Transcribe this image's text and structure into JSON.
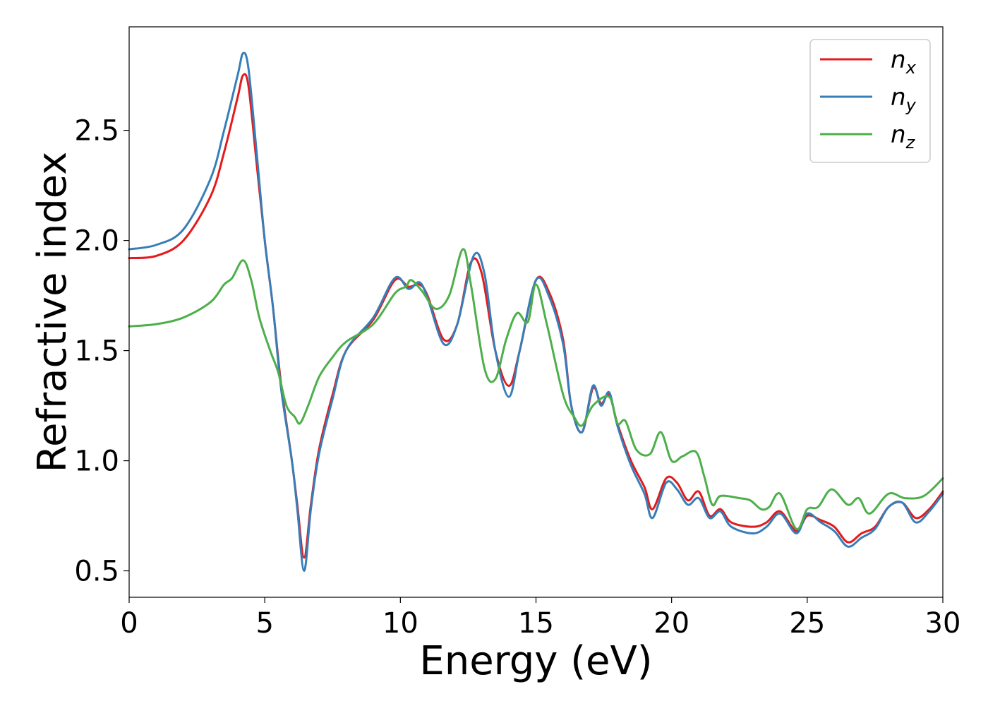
{
  "chart_data": {
    "type": "line",
    "xlabel": "Energy (eV)",
    "ylabel": "Refractive index",
    "xlim": [
      0,
      30
    ],
    "ylim": [
      0.38,
      2.97
    ],
    "xticks": [
      0,
      5,
      10,
      15,
      20,
      25,
      30
    ],
    "xtick_labels": [
      "0",
      "5",
      "10",
      "15",
      "20",
      "25",
      "30"
    ],
    "yticks": [
      0.5,
      1.0,
      1.5,
      2.0,
      2.5
    ],
    "ytick_labels": [
      "0.5",
      "1.0",
      "1.5",
      "2.0",
      "2.5"
    ],
    "grid": false,
    "legend_position": "top-right",
    "series": [
      {
        "name": "n",
        "subscript": "x",
        "color": "#e41a1c",
        "points": [
          [
            0,
            1.92
          ],
          [
            1,
            1.93
          ],
          [
            2,
            2.0
          ],
          [
            3,
            2.2
          ],
          [
            3.5,
            2.4
          ],
          [
            4,
            2.65
          ],
          [
            4.2,
            2.75
          ],
          [
            4.4,
            2.7
          ],
          [
            4.7,
            2.35
          ],
          [
            5,
            2.0
          ],
          [
            5.3,
            1.7
          ],
          [
            5.6,
            1.35
          ],
          [
            6,
            1.0
          ],
          [
            6.2,
            0.8
          ],
          [
            6.45,
            0.56
          ],
          [
            6.7,
            0.8
          ],
          [
            7,
            1.05
          ],
          [
            7.5,
            1.3
          ],
          [
            8,
            1.5
          ],
          [
            9,
            1.64
          ],
          [
            9.8,
            1.82
          ],
          [
            10.3,
            1.79
          ],
          [
            10.7,
            1.8
          ],
          [
            11,
            1.75
          ],
          [
            11.6,
            1.55
          ],
          [
            12.1,
            1.62
          ],
          [
            12.6,
            1.9
          ],
          [
            13,
            1.85
          ],
          [
            13.5,
            1.5
          ],
          [
            14,
            1.34
          ],
          [
            14.4,
            1.5
          ],
          [
            15,
            1.82
          ],
          [
            15.5,
            1.76
          ],
          [
            16,
            1.55
          ],
          [
            16.3,
            1.25
          ],
          [
            16.7,
            1.13
          ],
          [
            17.1,
            1.33
          ],
          [
            17.4,
            1.26
          ],
          [
            17.7,
            1.3
          ],
          [
            18,
            1.17
          ],
          [
            18.5,
            1.0
          ],
          [
            19,
            0.88
          ],
          [
            19.3,
            0.78
          ],
          [
            19.8,
            0.92
          ],
          [
            20.2,
            0.9
          ],
          [
            20.6,
            0.82
          ],
          [
            21,
            0.86
          ],
          [
            21.4,
            0.75
          ],
          [
            21.8,
            0.78
          ],
          [
            22.2,
            0.72
          ],
          [
            23,
            0.7
          ],
          [
            23.5,
            0.72
          ],
          [
            24,
            0.77
          ],
          [
            24.6,
            0.68
          ],
          [
            25,
            0.75
          ],
          [
            25.5,
            0.73
          ],
          [
            26,
            0.7
          ],
          [
            26.5,
            0.63
          ],
          [
            27,
            0.67
          ],
          [
            27.5,
            0.7
          ],
          [
            28,
            0.79
          ],
          [
            28.5,
            0.81
          ],
          [
            29,
            0.74
          ],
          [
            29.5,
            0.78
          ],
          [
            30,
            0.86
          ]
        ]
      },
      {
        "name": "n",
        "subscript": "y",
        "color": "#377eb8",
        "points": [
          [
            0,
            1.96
          ],
          [
            1,
            1.98
          ],
          [
            2,
            2.05
          ],
          [
            3,
            2.28
          ],
          [
            3.5,
            2.5
          ],
          [
            4,
            2.75
          ],
          [
            4.2,
            2.85
          ],
          [
            4.4,
            2.78
          ],
          [
            4.7,
            2.4
          ],
          [
            5,
            2.0
          ],
          [
            5.3,
            1.7
          ],
          [
            5.6,
            1.33
          ],
          [
            6,
            1.0
          ],
          [
            6.2,
            0.78
          ],
          [
            6.45,
            0.5
          ],
          [
            6.7,
            0.78
          ],
          [
            7,
            1.03
          ],
          [
            7.5,
            1.28
          ],
          [
            8,
            1.5
          ],
          [
            9,
            1.65
          ],
          [
            9.8,
            1.83
          ],
          [
            10.3,
            1.78
          ],
          [
            10.7,
            1.81
          ],
          [
            11,
            1.74
          ],
          [
            11.6,
            1.53
          ],
          [
            12.1,
            1.62
          ],
          [
            12.7,
            1.93
          ],
          [
            13.1,
            1.85
          ],
          [
            13.5,
            1.5
          ],
          [
            14,
            1.29
          ],
          [
            14.4,
            1.5
          ],
          [
            15,
            1.82
          ],
          [
            15.5,
            1.74
          ],
          [
            16,
            1.53
          ],
          [
            16.3,
            1.25
          ],
          [
            16.7,
            1.13
          ],
          [
            17.1,
            1.34
          ],
          [
            17.4,
            1.25
          ],
          [
            17.7,
            1.31
          ],
          [
            18,
            1.16
          ],
          [
            18.5,
            0.98
          ],
          [
            19,
            0.85
          ],
          [
            19.3,
            0.74
          ],
          [
            19.8,
            0.9
          ],
          [
            20.2,
            0.87
          ],
          [
            20.6,
            0.8
          ],
          [
            21,
            0.83
          ],
          [
            21.4,
            0.74
          ],
          [
            21.8,
            0.77
          ],
          [
            22.2,
            0.7
          ],
          [
            23,
            0.67
          ],
          [
            23.5,
            0.7
          ],
          [
            24,
            0.76
          ],
          [
            24.6,
            0.67
          ],
          [
            25,
            0.76
          ],
          [
            25.5,
            0.72
          ],
          [
            26,
            0.68
          ],
          [
            26.5,
            0.61
          ],
          [
            27,
            0.65
          ],
          [
            27.5,
            0.69
          ],
          [
            28,
            0.79
          ],
          [
            28.5,
            0.81
          ],
          [
            29,
            0.72
          ],
          [
            29.5,
            0.77
          ],
          [
            30,
            0.85
          ]
        ]
      },
      {
        "name": "n",
        "subscript": "z",
        "color": "#4daf4a",
        "points": [
          [
            0,
            1.61
          ],
          [
            1,
            1.62
          ],
          [
            2,
            1.65
          ],
          [
            3,
            1.72
          ],
          [
            3.5,
            1.8
          ],
          [
            3.8,
            1.83
          ],
          [
            4.2,
            1.91
          ],
          [
            4.5,
            1.82
          ],
          [
            4.8,
            1.65
          ],
          [
            5.2,
            1.5
          ],
          [
            5.5,
            1.4
          ],
          [
            5.8,
            1.25
          ],
          [
            6.1,
            1.2
          ],
          [
            6.3,
            1.17
          ],
          [
            6.6,
            1.25
          ],
          [
            7,
            1.38
          ],
          [
            7.5,
            1.47
          ],
          [
            8,
            1.54
          ],
          [
            9,
            1.62
          ],
          [
            9.8,
            1.76
          ],
          [
            10.2,
            1.79
          ],
          [
            10.4,
            1.82
          ],
          [
            10.8,
            1.77
          ],
          [
            11.3,
            1.69
          ],
          [
            11.8,
            1.75
          ],
          [
            12.3,
            1.96
          ],
          [
            12.6,
            1.8
          ],
          [
            13.1,
            1.42
          ],
          [
            13.5,
            1.37
          ],
          [
            13.9,
            1.55
          ],
          [
            14.3,
            1.67
          ],
          [
            14.7,
            1.63
          ],
          [
            15,
            1.8
          ],
          [
            15.4,
            1.62
          ],
          [
            16,
            1.3
          ],
          [
            16.4,
            1.2
          ],
          [
            16.7,
            1.16
          ],
          [
            17.1,
            1.25
          ],
          [
            17.7,
            1.29
          ],
          [
            18,
            1.17
          ],
          [
            18.3,
            1.18
          ],
          [
            18.7,
            1.05
          ],
          [
            19.2,
            1.03
          ],
          [
            19.6,
            1.13
          ],
          [
            20,
            1.0
          ],
          [
            20.4,
            1.02
          ],
          [
            20.9,
            1.04
          ],
          [
            21.2,
            0.93
          ],
          [
            21.5,
            0.8
          ],
          [
            21.8,
            0.84
          ],
          [
            22.5,
            0.83
          ],
          [
            22.9,
            0.82
          ],
          [
            23.3,
            0.78
          ],
          [
            23.6,
            0.79
          ],
          [
            24,
            0.85
          ],
          [
            24.6,
            0.69
          ],
          [
            25,
            0.78
          ],
          [
            25.4,
            0.79
          ],
          [
            25.9,
            0.87
          ],
          [
            26.5,
            0.8
          ],
          [
            26.9,
            0.83
          ],
          [
            27.3,
            0.76
          ],
          [
            28,
            0.85
          ],
          [
            28.6,
            0.83
          ],
          [
            29.3,
            0.84
          ],
          [
            30,
            0.92
          ]
        ]
      }
    ]
  }
}
